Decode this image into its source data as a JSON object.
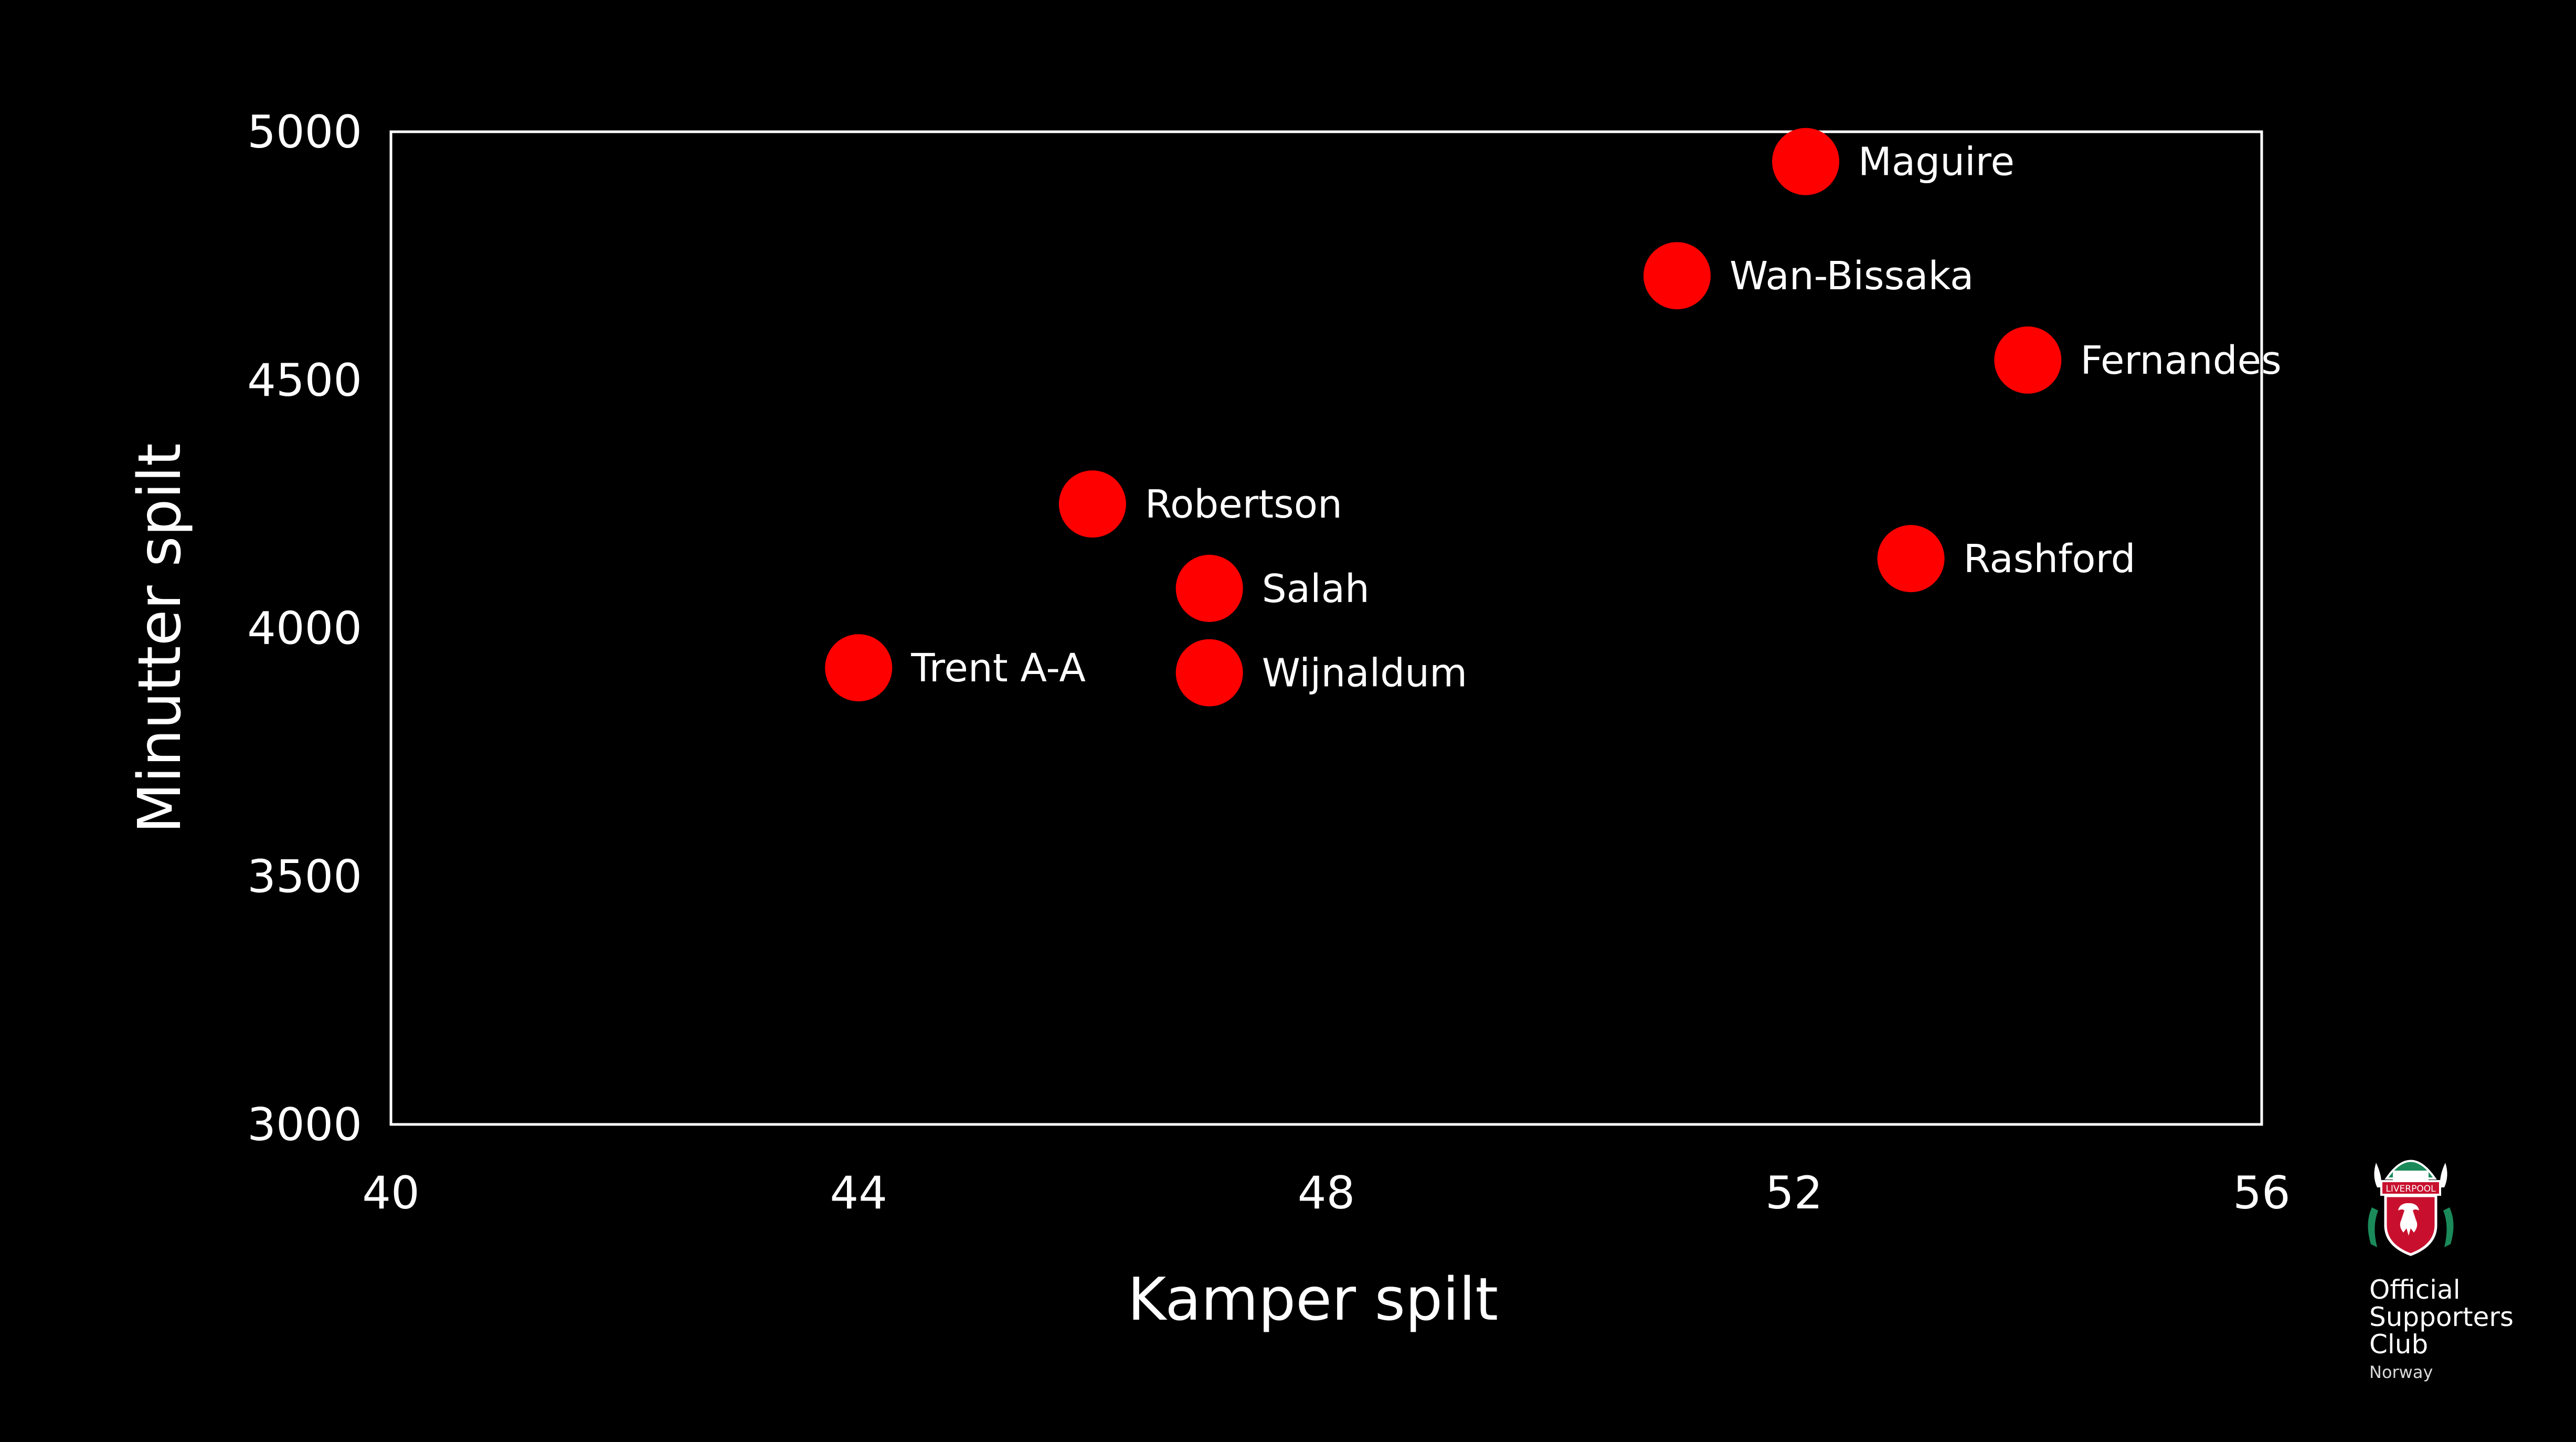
{
  "chart_data": {
    "type": "scatter",
    "xlabel": "Kamper spilt",
    "ylabel": "Minutter spilt",
    "xlim": [
      40,
      56
    ],
    "ylim": [
      3000,
      5000
    ],
    "xticks": [
      "40",
      "44",
      "48",
      "52",
      "56"
    ],
    "yticks": [
      "3000",
      "3500",
      "4000",
      "4500",
      "5000"
    ],
    "grid": false,
    "marker_color": "#ff0000",
    "background_color": "#000000",
    "text_color": "#ffffff",
    "points": [
      {
        "label": "Maguire",
        "x": 52.1,
        "y": 4940
      },
      {
        "label": "Wan-Bissaka",
        "x": 51.0,
        "y": 4710
      },
      {
        "label": "Fernandes",
        "x": 54.0,
        "y": 4540
      },
      {
        "label": "Robertson",
        "x": 46.0,
        "y": 4250
      },
      {
        "label": "Rashford",
        "x": 53.0,
        "y": 4140
      },
      {
        "label": "Salah",
        "x": 47.0,
        "y": 4080
      },
      {
        "label": "Trent A-A",
        "x": 44.0,
        "y": 3920
      },
      {
        "label": "Wijnaldum",
        "x": 47.0,
        "y": 3910
      }
    ]
  },
  "logo": {
    "name": "liverpool-crest",
    "lines": [
      "Official",
      "Supporters",
      "Club"
    ],
    "sub": "Norway",
    "crest_text": "LIVERPOOL"
  }
}
